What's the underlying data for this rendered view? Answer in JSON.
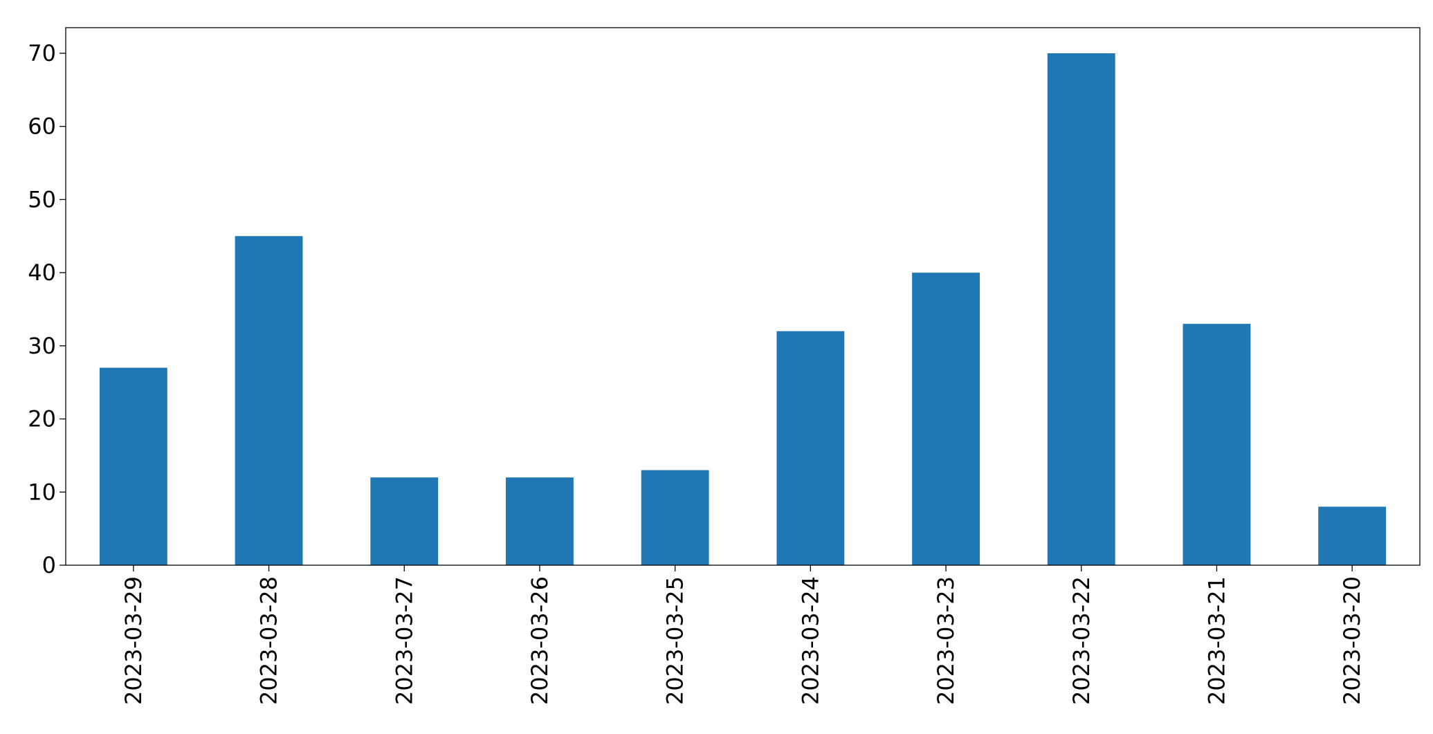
{
  "chart_data": {
    "type": "bar",
    "categories": [
      "2023-03-29",
      "2023-03-28",
      "2023-03-27",
      "2023-03-26",
      "2023-03-25",
      "2023-03-24",
      "2023-03-23",
      "2023-03-22",
      "2023-03-21",
      "2023-03-20"
    ],
    "values": [
      27,
      45,
      12,
      12,
      13,
      32,
      40,
      70,
      33,
      8
    ],
    "color": "#1f77b4",
    "ylim": [
      0,
      73.5
    ],
    "yticks": [
      0,
      10,
      20,
      30,
      40,
      50,
      60,
      70
    ],
    "grid": false
  }
}
